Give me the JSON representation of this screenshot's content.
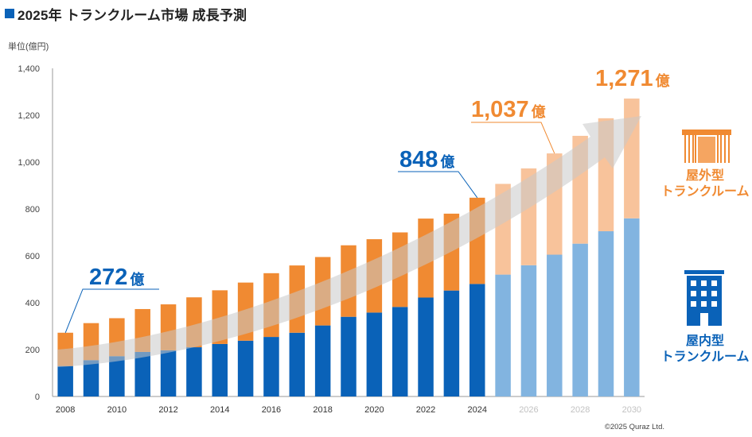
{
  "title": "2025年 トランクルーム市場 成長予測",
  "unit_label": "単位(億円)",
  "copyright": "©2025 Quraz Ltd.",
  "colors": {
    "indoor": "#0a62b8",
    "indoor_forecast": "#82b4e0",
    "outdoor": "#f08a32",
    "outdoor_forecast": "#f8c39b",
    "arrow": "#c8c8c8"
  },
  "legend": {
    "outdoor": [
      "屋外型",
      "トランクルーム"
    ],
    "indoor": [
      "屋内型",
      "トランクルーム"
    ]
  },
  "callouts": [
    {
      "year": 2008,
      "value": "272",
      "unit": "億",
      "color": "#0a62b8"
    },
    {
      "year": 2024,
      "value": "848",
      "unit": "億",
      "color": "#0a62b8"
    },
    {
      "year": 2027,
      "value": "1,037",
      "unit": "億",
      "color": "#f08a32"
    },
    {
      "year": 2030,
      "value": "1,271",
      "unit": "億",
      "color": "#f08a32"
    }
  ],
  "chart_data": {
    "type": "bar",
    "stacked": true,
    "categories": [
      2008,
      2009,
      2010,
      2011,
      2012,
      2013,
      2014,
      2015,
      2016,
      2017,
      2018,
      2019,
      2020,
      2021,
      2022,
      2023,
      2024,
      2025,
      2026,
      2027,
      2028,
      2029,
      2030
    ],
    "x_tick_labels": [
      "2008",
      "2010",
      "2012",
      "2014",
      "2016",
      "2018",
      "2020",
      "2022",
      "2024",
      "2026",
      "2028",
      "2030"
    ],
    "forecast_from": 2025,
    "series": [
      {
        "name": "屋内型トランクルーム",
        "values": [
          130,
          155,
          172,
          190,
          197,
          210,
          224,
          238,
          254,
          272,
          303,
          340,
          358,
          382,
          422,
          452,
          480,
          520,
          560,
          605,
          652,
          705,
          760
        ]
      },
      {
        "name": "屋外型トランクルーム",
        "values": [
          142,
          158,
          162,
          183,
          196,
          213,
          229,
          248,
          272,
          287,
          292,
          305,
          313,
          318,
          337,
          328,
          368,
          387,
          413,
          432,
          460,
          482,
          511
        ]
      }
    ],
    "totals": [
      272,
      313,
      334,
      373,
      393,
      423,
      453,
      486,
      526,
      559,
      595,
      645,
      671,
      700,
      759,
      780,
      848,
      907,
      973,
      1037,
      1112,
      1187,
      1271
    ],
    "ylim": [
      0,
      1400
    ],
    "yticks": [
      0,
      200,
      400,
      600,
      800,
      1000,
      1200,
      1400
    ],
    "ytick_labels": [
      "0",
      "200",
      "400",
      "600",
      "800",
      "1,000",
      "1,200",
      "1,400"
    ],
    "grid": false,
    "legend_position": "right"
  }
}
